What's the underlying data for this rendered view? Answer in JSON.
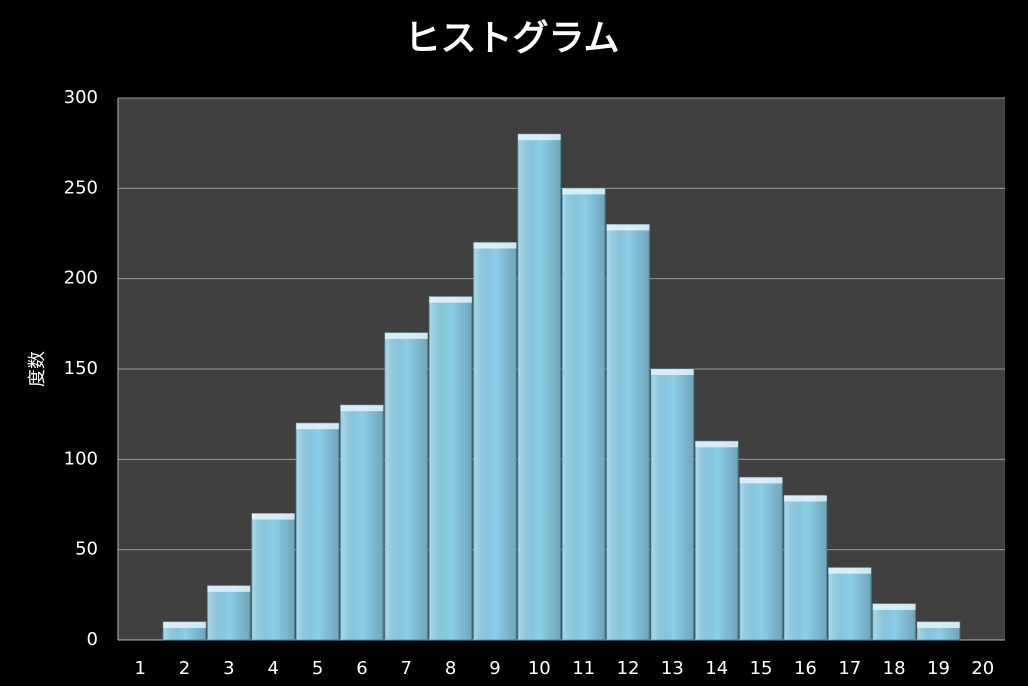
{
  "chart_data": {
    "type": "bar",
    "title": "ヒストグラム",
    "y_label": "度数",
    "categories": [
      "1",
      "2",
      "3",
      "4",
      "5",
      "6",
      "7",
      "8",
      "9",
      "10",
      "11",
      "12",
      "13",
      "14",
      "15",
      "16",
      "17",
      "18",
      "19",
      "20"
    ],
    "values": [
      0,
      10,
      30,
      70,
      120,
      130,
      170,
      190,
      220,
      280,
      250,
      230,
      150,
      110,
      90,
      80,
      40,
      20,
      10,
      0
    ],
    "color": "#8ccfe8",
    "ylim": [
      0,
      300
    ],
    "yticks": [
      0,
      50,
      100,
      150,
      200,
      250,
      300
    ],
    "grid": true
  }
}
